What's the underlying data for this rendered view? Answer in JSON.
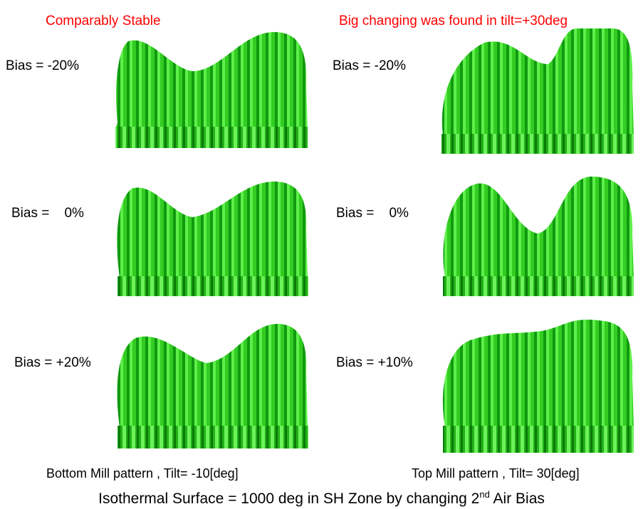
{
  "headers": {
    "left": "Comparably Stable",
    "right": "Big changing was found in tilt=+30deg"
  },
  "left_labels": [
    "Bias = -20%",
    "Bias =    0%",
    "Bias = +20%"
  ],
  "right_labels": [
    "Bias = -20%",
    "Bias =    0%",
    "Bias = +10%"
  ],
  "captions": {
    "left": "Bottom Mill pattern , Tilt= -10[deg]",
    "right": "Top Mill pattern , Tilt= 30[deg]"
  },
  "footer": {
    "text_before": "Isothermal Surface = 1000 deg in SH Zone by changing 2",
    "superscript": "nd",
    "text_after": " Air Bias"
  }
}
